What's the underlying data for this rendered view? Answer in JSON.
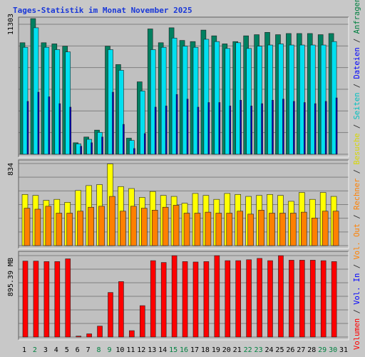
{
  "title": "Tages-Statistik im Monat November 2025",
  "right_legend": [
    {
      "text": "Anfragen",
      "color": "#008040"
    },
    {
      "text": " / ",
      "color": "#333333"
    },
    {
      "text": "Dateien",
      "color": "#0000ff"
    },
    {
      "text": " / ",
      "color": "#333333"
    },
    {
      "text": "Seiten",
      "color": "#00c0c0"
    },
    {
      "text": " / ",
      "color": "#333333"
    },
    {
      "text": "Besuche",
      "color": "#d8d800"
    },
    {
      "text": " / ",
      "color": "#333333"
    },
    {
      "text": "Rechner",
      "color": "#ff8000"
    },
    {
      "text": " / ",
      "color": "#333333"
    },
    {
      "text": "Vol. Out",
      "color": "#ff8000"
    },
    {
      "text": " / ",
      "color": "#333333"
    },
    {
      "text": "Vol. In",
      "color": "#0000ff"
    },
    {
      "text": " / ",
      "color": "#333333"
    },
    {
      "text": "Volumen",
      "color": "#ff0000"
    }
  ],
  "chart_data": [
    {
      "type": "bar",
      "max_label": "11303",
      "ymax": 11303,
      "categories": [
        "1",
        "2",
        "3",
        "4",
        "5",
        "6",
        "7",
        "8",
        "9",
        "10",
        "11",
        "12",
        "13",
        "14",
        "15",
        "16",
        "17",
        "18",
        "19",
        "20",
        "21",
        "22",
        "23",
        "24",
        "25",
        "26",
        "27",
        "28",
        "29",
        "30",
        "31"
      ],
      "weekend": [
        false,
        true,
        false,
        false,
        false,
        false,
        false,
        true,
        true,
        false,
        false,
        false,
        false,
        false,
        true,
        true,
        false,
        false,
        false,
        false,
        false,
        true,
        true,
        false,
        false,
        false,
        false,
        false,
        true,
        true,
        false
      ],
      "series": [
        {
          "name": "Anfragen",
          "color": "#008060",
          "values": [
            9700,
            11800,
            9700,
            9600,
            9400,
            1000,
            1500,
            2100,
            9400,
            7800,
            1400,
            6300,
            10900,
            9700,
            11000,
            9900,
            9800,
            10800,
            10300,
            9600,
            9800,
            10300,
            10400,
            10600,
            10400,
            10500,
            10500,
            10500,
            10400,
            10500,
            null
          ]
        },
        {
          "name": "Seiten",
          "color": "#00e0f0",
          "values": [
            9300,
            11000,
            9300,
            9100,
            8900,
            900,
            1300,
            1900,
            9100,
            7300,
            1200,
            5500,
            9100,
            9300,
            10100,
            9400,
            9300,
            10000,
            9800,
            9200,
            9700,
            9200,
            9400,
            9500,
            9600,
            9500,
            9500,
            9500,
            9500,
            9800,
            null
          ]
        },
        {
          "name": "Dateien",
          "color": "#0000c0",
          "values": [
            4600,
            5400,
            5000,
            4400,
            4100,
            700,
            1000,
            1500,
            5400,
            2600,
            500,
            1800,
            4100,
            4200,
            5200,
            4800,
            4100,
            4500,
            4500,
            4200,
            4700,
            4200,
            4400,
            4700,
            4800,
            4600,
            4500,
            4400,
            4600,
            4900,
            null
          ]
        }
      ]
    },
    {
      "type": "bar",
      "max_label": "834",
      "ymax": 834,
      "series": [
        {
          "name": "Besuche",
          "color": "#ffff00",
          "values": [
            520,
            510,
            460,
            470,
            440,
            560,
            610,
            620,
            830,
            600,
            580,
            490,
            550,
            510,
            500,
            430,
            530,
            510,
            470,
            530,
            520,
            500,
            510,
            520,
            510,
            450,
            540,
            470,
            540,
            500,
            null
          ]
        },
        {
          "name": "Rechner",
          "color": "#ff8000",
          "values": [
            380,
            370,
            400,
            330,
            330,
            350,
            390,
            400,
            500,
            350,
            400,
            380,
            360,
            390,
            410,
            330,
            330,
            340,
            330,
            330,
            350,
            320,
            360,
            330,
            330,
            330,
            340,
            280,
            350,
            350,
            null
          ]
        }
      ]
    },
    {
      "type": "bar",
      "max_label": "895.39 MB",
      "ymax": 895.39,
      "series": [
        {
          "name": "Volumen",
          "color": "#ff0000",
          "values": [
            835,
            835,
            830,
            830,
            860,
            10,
            35,
            120,
            490,
            610,
            70,
            345,
            840,
            820,
            895,
            830,
            825,
            830,
            895,
            840,
            840,
            850,
            865,
            840,
            895,
            845,
            845,
            845,
            840,
            830,
            null
          ]
        }
      ]
    }
  ]
}
